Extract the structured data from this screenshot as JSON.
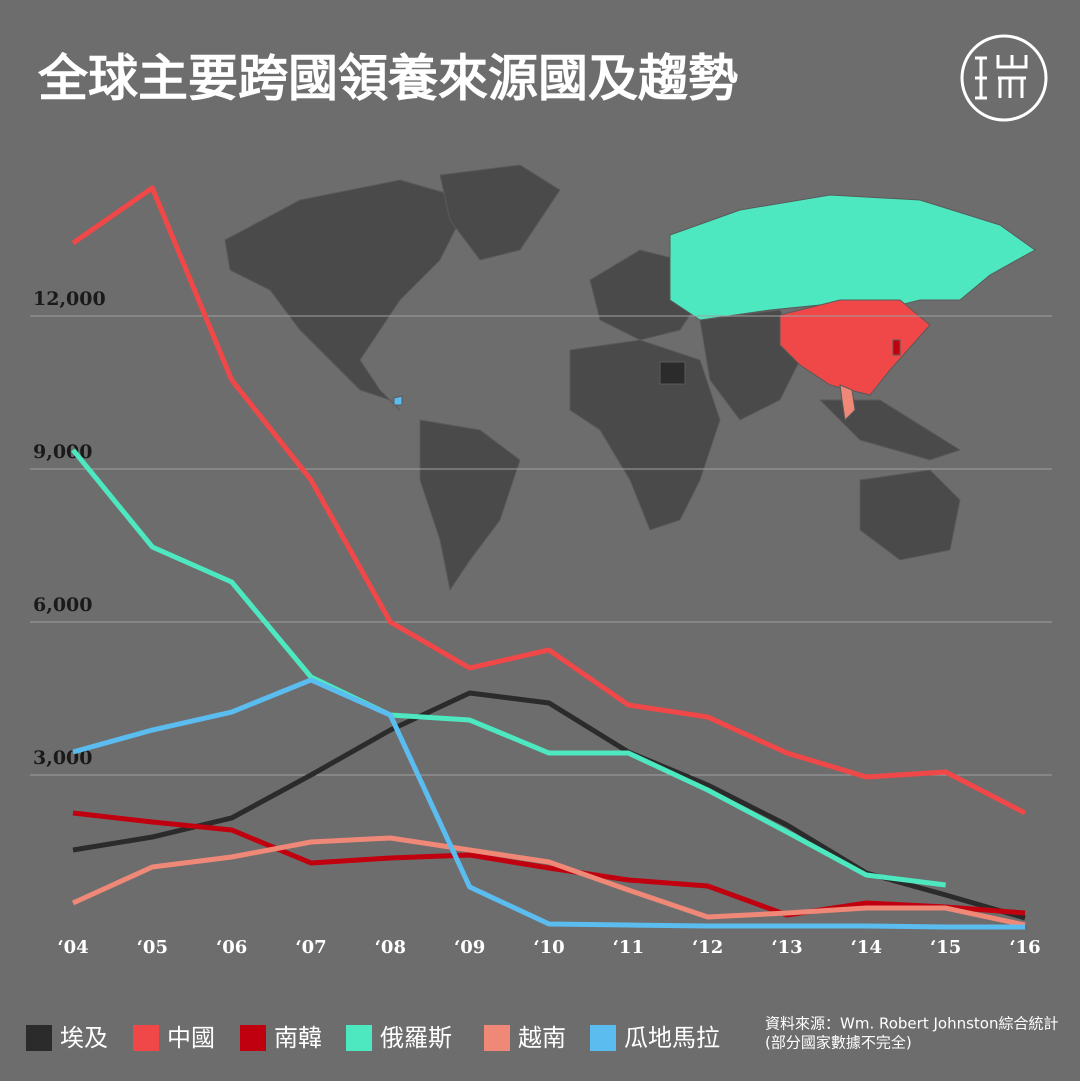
{
  "chart_data": {
    "type": "line",
    "title": "全球主要跨國領養來源國及趨勢",
    "categories": [
      "‘04",
      "‘05",
      "‘06",
      "‘07",
      "‘08",
      "‘09",
      "‘10",
      "‘11",
      "‘12",
      "‘13",
      "‘14",
      "‘15",
      "‘16"
    ],
    "ylim": [
      0,
      15000
    ],
    "yticks": [
      {
        "value": 3000,
        "label": "3,000"
      },
      {
        "value": 6000,
        "label": "6,000"
      },
      {
        "value": 9000,
        "label": "9,000"
      },
      {
        "value": 12000,
        "label": "12,000"
      }
    ],
    "grid": true,
    "series": [
      {
        "name": "埃及",
        "color": "#2b2b2b",
        "values": [
          1529,
          1784,
          2157,
          3000,
          3882,
          4608,
          4412,
          3451,
          2804,
          2020,
          1078,
          647,
          196
        ]
      },
      {
        "name": "中國",
        "color": "#f04848",
        "values": [
          13430,
          14510,
          10745,
          8785,
          6000,
          5098,
          5451,
          4373,
          4137,
          3431,
          2961,
          3059,
          2255
        ]
      },
      {
        "name": "南韓",
        "color": "#c0000e",
        "values": [
          2255,
          2078,
          1922,
          1275,
          1373,
          1431,
          1176,
          941,
          824,
          255,
          490,
          412,
          294
        ]
      },
      {
        "name": "俄羅斯",
        "color": "#4de8c0",
        "values": [
          9373,
          7471,
          6784,
          4922,
          4176,
          4078,
          3431,
          3431,
          2706,
          1882,
          1039,
          843,
          null
        ]
      },
      {
        "name": "越南",
        "color": "#f08878",
        "values": [
          490,
          1196,
          1392,
          1686,
          1765,
          1529,
          1294,
          745,
          216,
          294,
          392,
          392,
          59
        ]
      },
      {
        "name": "瓜地馬拉",
        "color": "#5bbcf0",
        "values": [
          3451,
          3882,
          4235,
          4863,
          4176,
          804,
          78,
          59,
          39,
          39,
          39,
          20,
          20
        ]
      }
    ],
    "source": "資料來源：Wm. Robert Johnston綜合統計",
    "note": "(部分國家數據不完全)"
  }
}
